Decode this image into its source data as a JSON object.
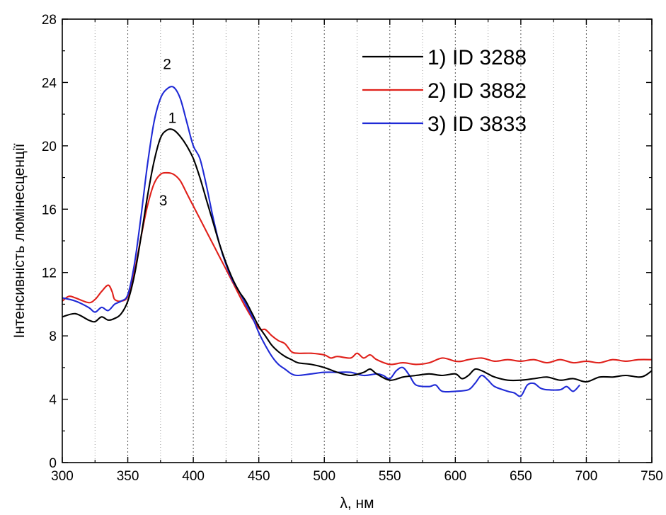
{
  "chart_data": {
    "type": "line",
    "xlabel": "λ, нм",
    "ylabel": "Інтенсивність люмінесценції",
    "xlim": [
      300,
      750
    ],
    "ylim": [
      0,
      28
    ],
    "xticks": [
      300,
      350,
      400,
      450,
      500,
      550,
      600,
      650,
      700,
      750
    ],
    "yticks": [
      0,
      4,
      8,
      12,
      16,
      20,
      24,
      28
    ],
    "xgrid": "dotted vertical every 25",
    "legend_position": "top-right",
    "series": [
      {
        "name": "1) ID 3288",
        "color": "#000000",
        "x": [
          300,
          310,
          320,
          325,
          330,
          335,
          340,
          345,
          350,
          355,
          360,
          365,
          370,
          375,
          380,
          385,
          390,
          395,
          400,
          405,
          410,
          415,
          420,
          425,
          430,
          435,
          440,
          445,
          450,
          455,
          460,
          465,
          470,
          475,
          480,
          490,
          500,
          510,
          520,
          530,
          535,
          540,
          550,
          560,
          570,
          580,
          590,
          600,
          605,
          610,
          615,
          620,
          625,
          630,
          640,
          650,
          660,
          670,
          680,
          690,
          700,
          710,
          720,
          730,
          740,
          745,
          750
        ],
        "y": [
          9.2,
          9.4,
          9.0,
          8.9,
          9.2,
          9.0,
          9.1,
          9.4,
          10.2,
          11.8,
          14.2,
          16.8,
          19.0,
          20.5,
          21.0,
          21.0,
          20.6,
          20.0,
          19.2,
          18.0,
          16.6,
          15.2,
          13.8,
          12.6,
          11.6,
          10.8,
          10.2,
          9.4,
          8.6,
          8.0,
          7.4,
          7.0,
          6.7,
          6.5,
          6.3,
          6.2,
          6.0,
          5.7,
          5.5,
          5.7,
          5.9,
          5.6,
          5.2,
          5.4,
          5.5,
          5.6,
          5.5,
          5.6,
          5.3,
          5.5,
          5.9,
          5.8,
          5.6,
          5.4,
          5.2,
          5.2,
          5.3,
          5.4,
          5.2,
          5.3,
          5.1,
          5.4,
          5.4,
          5.5,
          5.4,
          5.5,
          5.8
        ]
      },
      {
        "name": "2) ID 3882",
        "color": "#e0201a",
        "x": [
          300,
          305,
          310,
          320,
          325,
          330,
          335,
          338,
          340,
          345,
          350,
          355,
          360,
          365,
          370,
          375,
          380,
          385,
          390,
          395,
          400,
          405,
          410,
          415,
          420,
          425,
          430,
          440,
          450,
          455,
          460,
          465,
          470,
          475,
          480,
          490,
          500,
          505,
          510,
          520,
          525,
          530,
          535,
          540,
          550,
          560,
          570,
          580,
          590,
          600,
          605,
          610,
          620,
          630,
          640,
          650,
          660,
          670,
          680,
          690,
          700,
          710,
          720,
          730,
          740,
          750
        ],
        "y": [
          10.2,
          10.5,
          10.4,
          10.1,
          10.3,
          10.8,
          11.2,
          10.8,
          10.3,
          10.2,
          10.5,
          12.0,
          14.2,
          16.2,
          17.6,
          18.2,
          18.3,
          18.2,
          17.8,
          17.0,
          16.2,
          15.4,
          14.6,
          13.8,
          13.0,
          12.2,
          11.4,
          9.8,
          8.5,
          8.4,
          8.0,
          7.7,
          7.5,
          7.0,
          6.9,
          6.9,
          6.8,
          6.6,
          6.7,
          6.6,
          6.9,
          6.6,
          6.8,
          6.5,
          6.2,
          6.3,
          6.2,
          6.3,
          6.6,
          6.4,
          6.4,
          6.5,
          6.6,
          6.4,
          6.5,
          6.4,
          6.5,
          6.3,
          6.5,
          6.3,
          6.4,
          6.3,
          6.5,
          6.4,
          6.5,
          6.5
        ]
      },
      {
        "name": "3) ID 3833",
        "color": "#1f2ad6",
        "x": [
          300,
          310,
          320,
          325,
          330,
          335,
          340,
          345,
          350,
          355,
          360,
          365,
          370,
          375,
          380,
          385,
          390,
          395,
          400,
          405,
          410,
          415,
          420,
          425,
          430,
          435,
          440,
          445,
          450,
          455,
          460,
          465,
          470,
          475,
          480,
          490,
          500,
          510,
          520,
          530,
          540,
          545,
          550,
          555,
          560,
          565,
          570,
          580,
          585,
          590,
          600,
          610,
          615,
          620,
          625,
          630,
          640,
          645,
          650,
          655,
          660,
          665,
          670,
          680,
          685,
          690,
          695
        ],
        "y": [
          10.4,
          10.2,
          9.8,
          9.5,
          9.8,
          9.6,
          10.0,
          10.2,
          10.6,
          12.5,
          15.5,
          18.8,
          21.5,
          23.0,
          23.6,
          23.7,
          23.0,
          21.5,
          20.0,
          19.2,
          17.5,
          15.5,
          13.8,
          12.5,
          11.5,
          10.8,
          10.0,
          9.2,
          8.2,
          7.4,
          6.7,
          6.2,
          5.9,
          5.6,
          5.5,
          5.6,
          5.7,
          5.7,
          5.7,
          5.5,
          5.6,
          5.5,
          5.3,
          5.8,
          6.0,
          5.5,
          4.9,
          4.8,
          4.9,
          4.5,
          4.5,
          4.6,
          5.0,
          5.5,
          5.2,
          4.8,
          4.5,
          4.4,
          4.2,
          4.9,
          5.0,
          4.7,
          4.6,
          4.6,
          4.8,
          4.5,
          4.9
        ]
      }
    ],
    "annotations": [
      {
        "text": "2",
        "x": 380,
        "y": 25.2
      },
      {
        "text": "1",
        "x": 384,
        "y": 21.8
      },
      {
        "text": "3",
        "x": 377,
        "y": 16.6
      }
    ]
  }
}
